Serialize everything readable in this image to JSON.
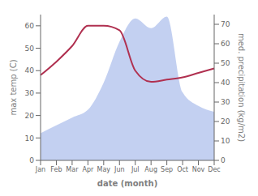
{
  "chart_data": {
    "type": "line",
    "categories": [
      "Jan",
      "Feb",
      "Mar",
      "Apr",
      "May",
      "Jun",
      "Jul",
      "Aug",
      "Sep",
      "Oct",
      "Nov",
      "Dec"
    ],
    "series": [
      {
        "type": "area",
        "color": "#b8c8ee",
        "axis": "y2",
        "values": [
          14,
          18,
          22,
          26,
          40,
          61,
          73,
          68,
          74,
          35,
          28,
          25
        ]
      },
      {
        "type": "line",
        "color": "#b03050",
        "values": [
          38,
          44,
          51,
          60,
          60,
          58,
          40,
          35,
          36,
          37,
          39,
          41
        ]
      }
    ],
    "xlabel": "date (month)",
    "ylabel": "max temp (C)",
    "y2label": "med. precipitation (kg/m2)",
    "ylim": [
      0,
      65
    ],
    "yticks": [
      0,
      10,
      20,
      30,
      40,
      50,
      60
    ],
    "y2lim": [
      0,
      75
    ],
    "y2ticks": [
      0,
      10,
      20,
      30,
      40,
      50,
      60,
      70
    ],
    "grid": false
  }
}
